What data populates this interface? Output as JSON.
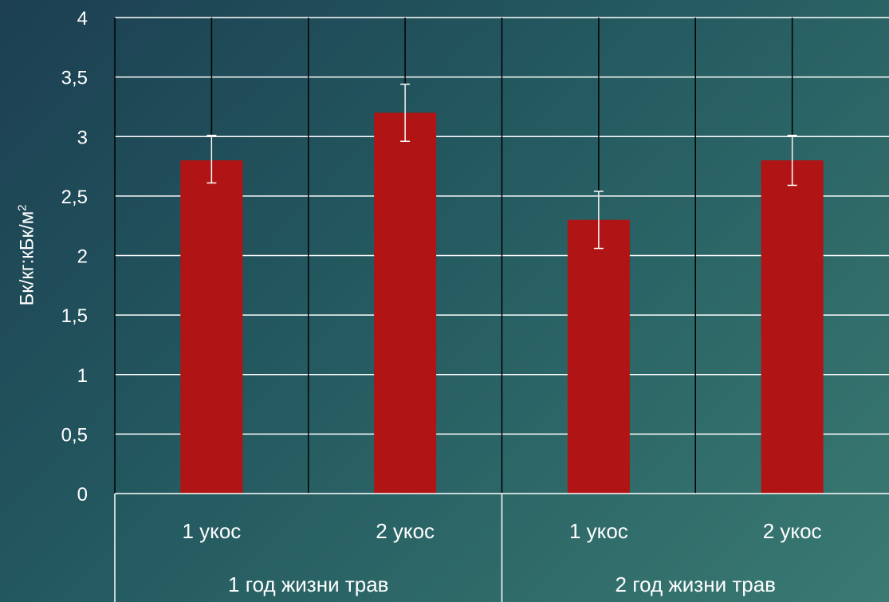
{
  "chart_data": {
    "type": "bar",
    "title": "",
    "xlabel": "",
    "ylabel": "Бк/кг:кБк/м",
    "ylabel_superscript": "2",
    "ylim": [
      0,
      4
    ],
    "yticks": [
      "0",
      "0,5",
      "1",
      "1,5",
      "2",
      "2,5",
      "3",
      "3,5",
      "4"
    ],
    "grid": true,
    "categories": [
      "1 укос",
      "2 укос",
      "1 укос",
      "2 укос"
    ],
    "groups": [
      {
        "label": "1 год жизни трав",
        "span": [
          0,
          1
        ]
      },
      {
        "label": "2 год жизни трав",
        "span": [
          2,
          3
        ]
      }
    ],
    "series": [
      {
        "values": [
          2.8,
          3.2,
          2.3,
          2.8
        ],
        "error_low": [
          2.61,
          2.96,
          2.06,
          2.59
        ],
        "error_high": [
          3.01,
          3.44,
          2.54,
          3.01
        ]
      }
    ],
    "colors": {
      "bar": "#b01414",
      "gridline": "#ffffff",
      "text": "#ffffff",
      "errorbar": "#ffffff",
      "category_separator": "#000000"
    }
  }
}
